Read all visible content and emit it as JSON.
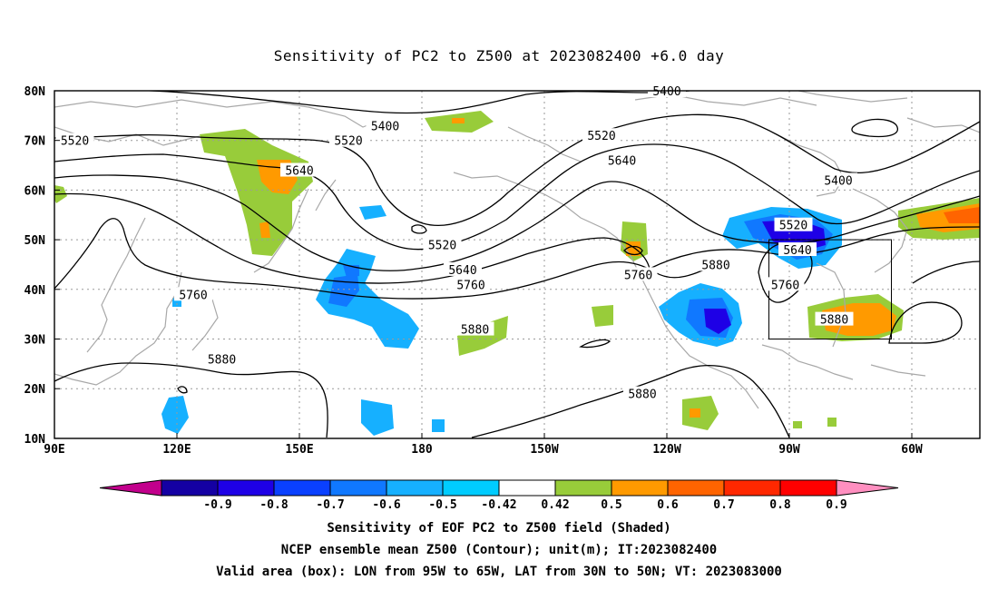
{
  "title": "Sensitivity of PC2 to Z500 at 2023082400 +6.0 day",
  "map": {
    "lat_labels": [
      "80N",
      "70N",
      "60N",
      "50N",
      "40N",
      "30N",
      "20N",
      "10N"
    ],
    "lon_labels": [
      "90E",
      "120E",
      "150E",
      "180",
      "150W",
      "120W",
      "90W",
      "60W"
    ],
    "contour_labels": [
      {
        "text": "5400",
        "lon": -120,
        "lat": 80
      },
      {
        "text": "5400",
        "lon": 171,
        "lat": 73
      },
      {
        "text": "5520",
        "lon": 95,
        "lat": 70
      },
      {
        "text": "5520",
        "lon": 162,
        "lat": 70
      },
      {
        "text": "5640",
        "lon": 150,
        "lat": 64
      },
      {
        "text": "5520",
        "lon": -136,
        "lat": 71
      },
      {
        "text": "5640",
        "lon": -131,
        "lat": 66
      },
      {
        "text": "5400",
        "lon": -78,
        "lat": 62
      },
      {
        "text": "5520",
        "lon": -89,
        "lat": 53
      },
      {
        "text": "5640",
        "lon": -88,
        "lat": 48
      },
      {
        "text": "5520",
        "lon": -175,
        "lat": 49
      },
      {
        "text": "5640",
        "lon": -170,
        "lat": 44
      },
      {
        "text": "5760",
        "lon": -168,
        "lat": 41
      },
      {
        "text": "5760",
        "lon": -127,
        "lat": 43
      },
      {
        "text": "5880",
        "lon": -108,
        "lat": 45
      },
      {
        "text": "5760",
        "lon": -91,
        "lat": 41
      },
      {
        "text": "5880",
        "lon": -79,
        "lat": 34
      },
      {
        "text": "5760",
        "lon": 124,
        "lat": 39
      },
      {
        "text": "5880",
        "lon": -167,
        "lat": 32
      },
      {
        "text": "5880",
        "lon": 131,
        "lat": 26
      },
      {
        "text": "5880",
        "lon": -126,
        "lat": 19
      }
    ],
    "box": {
      "lon": [
        -95,
        -65
      ],
      "lat": [
        30,
        50
      ]
    }
  },
  "colorbar": {
    "labels": [
      "-0.9",
      "-0.8",
      "-0.7",
      "-0.6",
      "-0.5",
      "-0.42",
      "0.42",
      "0.5",
      "0.6",
      "0.7",
      "0.8",
      "0.9"
    ],
    "colors": [
      "#c2008c",
      "#1400a3",
      "#1e00e6",
      "#0a40ff",
      "#1078ff",
      "#16b0ff",
      "#00ccff",
      "#ffffff",
      "#98cc3a",
      "#ff9a00",
      "#ff6400",
      "#ff2800",
      "#ff0000",
      "#ff8fc0"
    ]
  },
  "captions": [
    "Sensitivity of EOF PC2 to Z500 field (Shaded)",
    "NCEP ensemble mean Z500 (Contour); unit(m); IT:2023082400",
    "Valid area (box): LON from 95W to 65W, LAT from 30N to 50N; VT: 2023083000"
  ],
  "colors": {
    "contour": "#000000",
    "coast": "#a8a8a8",
    "grid": "#9a9a9a"
  }
}
